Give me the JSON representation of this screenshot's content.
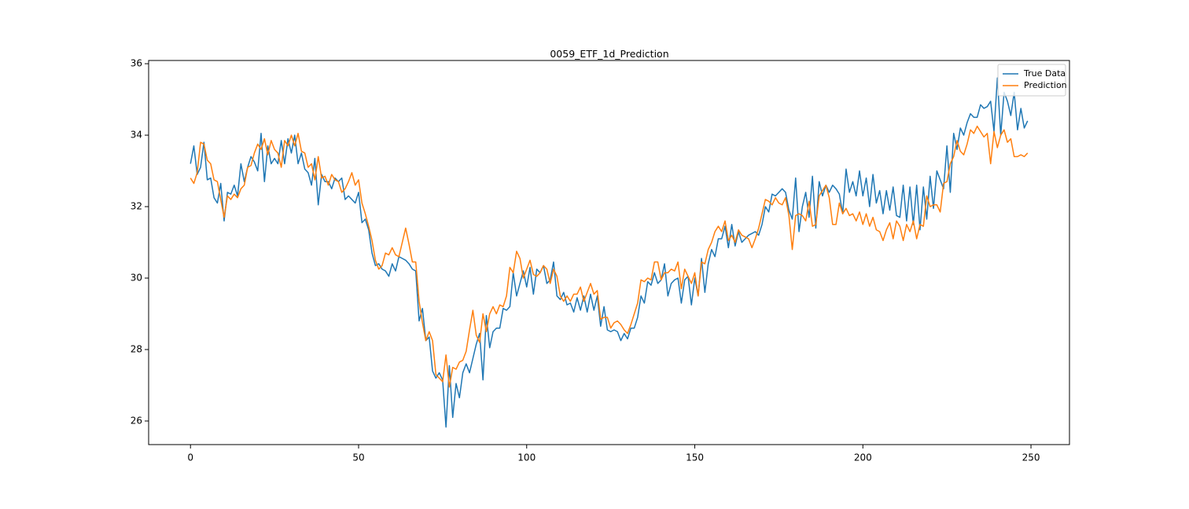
{
  "chart_data": {
    "type": "line",
    "title": "0059_ETF_1d_Prediction",
    "x": [
      0,
      1,
      2,
      3,
      4,
      5,
      6,
      7,
      8,
      9,
      10,
      11,
      12,
      13,
      14,
      15,
      16,
      17,
      18,
      19,
      20,
      21,
      22,
      23,
      24,
      25,
      26,
      27,
      28,
      29,
      30,
      31,
      32,
      33,
      34,
      35,
      36,
      37,
      38,
      39,
      40,
      41,
      42,
      43,
      44,
      45,
      46,
      47,
      48,
      49,
      50,
      51,
      52,
      53,
      54,
      55,
      56,
      57,
      58,
      59,
      60,
      61,
      62,
      63,
      64,
      65,
      66,
      67,
      68,
      69,
      70,
      71,
      72,
      73,
      74,
      75,
      76,
      77,
      78,
      79,
      80,
      81,
      82,
      83,
      84,
      85,
      86,
      87,
      88,
      89,
      90,
      91,
      92,
      93,
      94,
      95,
      96,
      97,
      98,
      99,
      100,
      101,
      102,
      103,
      104,
      105,
      106,
      107,
      108,
      109,
      110,
      111,
      112,
      113,
      114,
      115,
      116,
      117,
      118,
      119,
      120,
      121,
      122,
      123,
      124,
      125,
      126,
      127,
      128,
      129,
      130,
      131,
      132,
      133,
      134,
      135,
      136,
      137,
      138,
      139,
      140,
      141,
      142,
      143,
      144,
      145,
      146,
      147,
      148,
      149,
      150,
      151,
      152,
      153,
      154,
      155,
      156,
      157,
      158,
      159,
      160,
      161,
      162,
      163,
      164,
      165,
      166,
      167,
      168,
      169,
      170,
      171,
      172,
      173,
      174,
      175,
      176,
      177,
      178,
      179,
      180,
      181,
      182,
      183,
      184,
      185,
      186,
      187,
      188,
      189,
      190,
      191,
      192,
      193,
      194,
      195,
      196,
      197,
      198,
      199,
      200,
      201,
      202,
      203,
      204,
      205,
      206,
      207,
      208,
      209,
      210,
      211,
      212,
      213,
      214,
      215,
      216,
      217,
      218,
      219,
      220,
      221,
      222,
      223,
      224,
      225,
      226,
      227,
      228,
      229,
      230,
      231,
      232,
      233,
      234,
      235,
      236,
      237,
      238,
      239,
      240,
      241,
      242,
      243,
      244,
      245,
      246,
      247,
      248,
      249
    ],
    "series": [
      {
        "name": "True Data",
        "color": "#1f77b4",
        "values": [
          33.2,
          33.7,
          32.9,
          33.1,
          33.8,
          32.75,
          32.8,
          32.25,
          32.1,
          32.65,
          31.6,
          32.4,
          32.35,
          32.6,
          32.3,
          33.2,
          32.7,
          33.1,
          33.4,
          33.25,
          33.0,
          34.05,
          32.7,
          33.7,
          33.2,
          33.35,
          33.2,
          33.85,
          33.2,
          33.9,
          33.5,
          34.0,
          33.2,
          33.5,
          33.05,
          32.95,
          32.6,
          33.35,
          32.05,
          32.9,
          32.7,
          32.7,
          32.5,
          32.8,
          32.7,
          32.8,
          32.2,
          32.3,
          32.2,
          32.1,
          32.4,
          31.55,
          31.65,
          31.35,
          30.7,
          30.35,
          30.4,
          30.25,
          30.2,
          30.05,
          30.4,
          30.2,
          30.6,
          30.55,
          30.5,
          30.4,
          30.25,
          30.2,
          28.8,
          29.15,
          28.25,
          28.35,
          27.4,
          27.2,
          27.35,
          27.15,
          25.83,
          27.55,
          26.1,
          27.05,
          26.65,
          27.35,
          27.6,
          27.35,
          27.75,
          28.15,
          28.45,
          27.15,
          28.95,
          28.05,
          28.5,
          28.6,
          28.6,
          29.15,
          29.1,
          29.2,
          30.15,
          29.5,
          29.85,
          30.2,
          29.75,
          30.3,
          29.55,
          30.25,
          30.15,
          30.35,
          29.85,
          29.95,
          30.45,
          29.5,
          29.4,
          29.6,
          29.25,
          29.3,
          29.05,
          29.45,
          29.1,
          29.5,
          29.05,
          29.55,
          29.1,
          29.5,
          28.65,
          29.2,
          28.55,
          28.5,
          28.55,
          28.5,
          28.25,
          28.45,
          28.3,
          28.6,
          28.6,
          28.9,
          29.5,
          29.3,
          29.9,
          29.8,
          30.15,
          29.85,
          29.95,
          30.4,
          29.5,
          29.85,
          29.95,
          30.0,
          29.3,
          29.95,
          30.05,
          29.25,
          30.0,
          29.5,
          30.55,
          29.6,
          30.4,
          30.8,
          30.6,
          31.1,
          31.1,
          31.45,
          30.85,
          31.5,
          30.9,
          31.3,
          31.0,
          31.1,
          31.2,
          31.25,
          31.3,
          31.2,
          31.5,
          32.0,
          31.85,
          32.35,
          32.3,
          32.4,
          32.5,
          32.4,
          31.9,
          31.65,
          32.8,
          31.3,
          32.0,
          32.4,
          31.7,
          32.85,
          31.4,
          32.7,
          32.3,
          32.6,
          32.4,
          32.6,
          32.5,
          32.35,
          31.8,
          33.05,
          32.4,
          32.7,
          32.3,
          33.0,
          32.3,
          32.8,
          32.0,
          32.9,
          32.1,
          32.45,
          31.8,
          32.45,
          31.9,
          32.55,
          31.75,
          31.7,
          32.6,
          31.6,
          32.55,
          31.5,
          32.6,
          31.35,
          32.55,
          31.65,
          32.85,
          31.95,
          33.0,
          32.75,
          32.5,
          33.7,
          32.4,
          34.05,
          33.6,
          34.2,
          34.0,
          34.35,
          34.6,
          34.5,
          34.5,
          34.85,
          34.75,
          34.8,
          34.95,
          34.1,
          35.6,
          34.0,
          35.2,
          34.95,
          34.55,
          35.2,
          34.15,
          34.75,
          34.2,
          34.4
        ]
      },
      {
        "name": "Prediction",
        "color": "#ff7f0e",
        "values": [
          32.8,
          32.65,
          32.95,
          33.8,
          33.75,
          33.3,
          33.2,
          32.75,
          32.7,
          32.2,
          31.7,
          32.3,
          32.2,
          32.35,
          32.25,
          32.5,
          32.6,
          33.1,
          33.15,
          33.5,
          33.75,
          33.6,
          33.9,
          33.45,
          33.85,
          33.6,
          33.5,
          33.1,
          33.85,
          33.7,
          34.0,
          33.7,
          34.05,
          33.55,
          33.5,
          33.1,
          33.2,
          32.75,
          33.4,
          32.8,
          32.85,
          32.6,
          32.9,
          32.75,
          32.7,
          32.4,
          32.5,
          32.7,
          32.95,
          32.6,
          32.75,
          32.1,
          31.8,
          31.45,
          31.05,
          30.5,
          30.25,
          30.35,
          30.7,
          30.65,
          30.85,
          30.65,
          30.6,
          31.0,
          31.4,
          30.95,
          30.45,
          30.45,
          29.35,
          28.75,
          28.25,
          28.5,
          28.25,
          27.3,
          27.2,
          27.1,
          27.85,
          26.95,
          27.5,
          27.45,
          27.65,
          27.7,
          27.95,
          28.55,
          29.1,
          28.4,
          28.2,
          29.0,
          28.5,
          29.0,
          29.2,
          29.0,
          29.25,
          29.2,
          29.5,
          30.3,
          30.15,
          30.75,
          30.55,
          30.0,
          30.25,
          30.5,
          30.1,
          30.05,
          30.15,
          30.35,
          30.25,
          29.85,
          30.25,
          30.05,
          29.5,
          29.35,
          29.5,
          29.35,
          29.55,
          29.55,
          29.75,
          29.35,
          29.6,
          29.85,
          29.55,
          29.65,
          28.85,
          28.9,
          28.9,
          28.6,
          28.75,
          28.8,
          28.7,
          28.55,
          28.45,
          28.7,
          29.0,
          29.3,
          29.95,
          29.9,
          30.0,
          29.95,
          30.45,
          30.45,
          29.95,
          30.15,
          30.15,
          30.25,
          30.2,
          30.45,
          29.7,
          30.25,
          30.05,
          29.85,
          30.15,
          29.5,
          30.45,
          30.4,
          30.8,
          31.0,
          31.3,
          31.45,
          31.3,
          31.6,
          31.05,
          31.2,
          31.0,
          31.35,
          31.2,
          31.15,
          31.1,
          30.85,
          31.1,
          31.4,
          31.8,
          32.2,
          32.15,
          32.05,
          32.25,
          32.1,
          32.05,
          32.25,
          31.75,
          30.8,
          31.75,
          31.8,
          31.75,
          31.6,
          32.15,
          31.45,
          31.5,
          32.3,
          32.45,
          32.6,
          32.25,
          31.5,
          31.5,
          32.1,
          31.8,
          31.95,
          31.75,
          31.8,
          31.6,
          31.85,
          31.5,
          31.8,
          31.45,
          31.7,
          31.35,
          31.3,
          31.05,
          31.35,
          31.55,
          31.1,
          31.6,
          31.45,
          31.05,
          31.5,
          31.3,
          31.6,
          31.1,
          31.5,
          31.45,
          32.3,
          32.0,
          32.05,
          32.05,
          31.85,
          32.65,
          32.7,
          33.2,
          33.4,
          33.85,
          33.55,
          33.45,
          33.75,
          34.15,
          34.05,
          34.25,
          34.1,
          33.95,
          34.05,
          33.2,
          34.1,
          33.65,
          34.0,
          34.15,
          33.8,
          33.9,
          33.4,
          33.4,
          33.45,
          33.4,
          33.5
        ]
      }
    ],
    "xlim": [
      -12.45,
      261.45
    ],
    "xticks": [
      0,
      50,
      100,
      150,
      200,
      250
    ],
    "ylim": [
      25.34,
      36.09
    ],
    "yticks": [
      26,
      28,
      30,
      32,
      34,
      36
    ],
    "grid": false,
    "legend": "upper right"
  }
}
